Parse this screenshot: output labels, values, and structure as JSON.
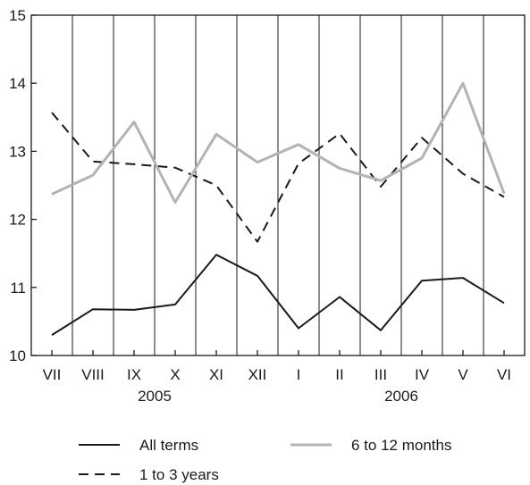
{
  "chart_data": {
    "type": "line",
    "title": "",
    "xlabel": "",
    "ylabel": "",
    "categories": [
      "VII",
      "VIII",
      "IX",
      "X",
      "XI",
      "XII",
      "I",
      "II",
      "III",
      "IV",
      "V",
      "VI"
    ],
    "year_labels": [
      {
        "label": "2005",
        "span": [
          "VII",
          "XII"
        ]
      },
      {
        "label": "2006",
        "span": [
          "I",
          "VI"
        ]
      }
    ],
    "ylim": [
      10,
      15
    ],
    "yticks": [
      10,
      11,
      12,
      13,
      14,
      15
    ],
    "grid": "vertical",
    "series": [
      {
        "name": "All terms",
        "style": "solid",
        "color": "#1a1a1a",
        "values": [
          10.3,
          10.68,
          10.67,
          10.75,
          11.48,
          11.17,
          10.4,
          10.86,
          10.37,
          11.1,
          11.14,
          10.77
        ]
      },
      {
        "name": "1 to 3 years",
        "style": "dashed",
        "color": "#1a1a1a",
        "values": [
          13.57,
          12.85,
          12.81,
          12.76,
          12.5,
          11.67,
          12.82,
          13.26,
          12.48,
          13.2,
          12.67,
          12.33
        ]
      },
      {
        "name": "6 to 12 months",
        "style": "solid",
        "color": "#b3b3b3",
        "values": [
          12.37,
          12.65,
          13.43,
          12.25,
          13.25,
          12.84,
          13.1,
          12.75,
          12.57,
          12.9,
          14.0,
          12.38
        ]
      }
    ],
    "legend": {
      "placement": "bottom",
      "order": [
        "All terms",
        "6 to 12 months",
        "1 to 3 years"
      ]
    }
  }
}
